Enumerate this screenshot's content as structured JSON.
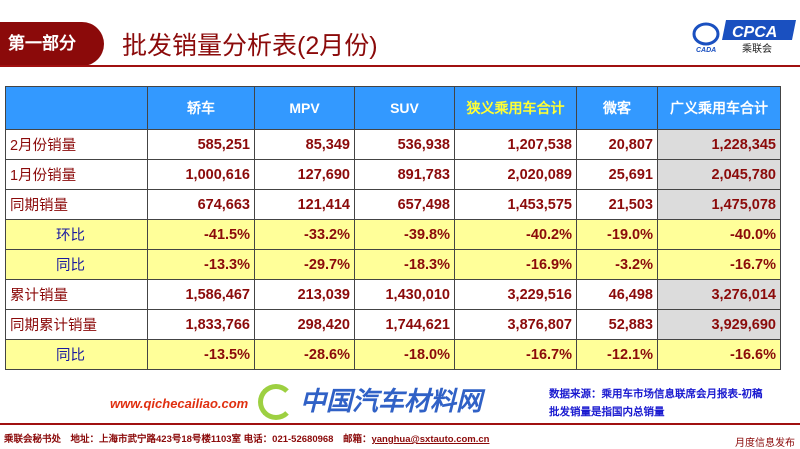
{
  "header": {
    "section": "第一部分",
    "title": "批发销量分析表(2月份)",
    "logo_text": "CPCA",
    "logo_sub": "乘联会",
    "logo_mark": "CADA"
  },
  "table": {
    "columns": [
      "",
      "轿车",
      "MPV",
      "SUV",
      "狭义乘用车合计",
      "微客",
      "广义乘用车合计"
    ],
    "rows": [
      {
        "label": "2月份销量",
        "values": [
          "585,251",
          "85,349",
          "536,938",
          "1,207,538",
          "20,807",
          "1,228,345"
        ],
        "type": "data"
      },
      {
        "label": "1月份销量",
        "values": [
          "1,000,616",
          "127,690",
          "891,783",
          "2,020,089",
          "25,691",
          "2,045,780"
        ],
        "type": "data"
      },
      {
        "label": "同期销量",
        "values": [
          "674,663",
          "121,414",
          "657,498",
          "1,453,575",
          "21,503",
          "1,475,078"
        ],
        "type": "data"
      },
      {
        "label": "环比",
        "values": [
          "-41.5%",
          "-33.2%",
          "-39.8%",
          "-40.2%",
          "-19.0%",
          "-40.0%"
        ],
        "type": "ratio"
      },
      {
        "label": "同比",
        "values": [
          "-13.3%",
          "-29.7%",
          "-18.3%",
          "-16.9%",
          "-3.2%",
          "-16.7%"
        ],
        "type": "ratio"
      },
      {
        "label": "累计销量",
        "values": [
          "1,586,467",
          "213,039",
          "1,430,010",
          "3,229,516",
          "46,498",
          "3,276,014"
        ],
        "type": "data"
      },
      {
        "label": "同期累计销量",
        "values": [
          "1,833,766",
          "298,420",
          "1,744,621",
          "3,876,807",
          "52,883",
          "3,929,690"
        ],
        "type": "data"
      },
      {
        "label": "同比",
        "values": [
          "-13.5%",
          "-28.6%",
          "-18.0%",
          "-16.7%",
          "-12.1%",
          "-16.6%"
        ],
        "type": "ratio"
      }
    ]
  },
  "notes": [
    "数据来源：乘用车市场信息联席会月报表-初稿",
    "批发销量是指国内总销量"
  ],
  "footer": {
    "text": "乘联会秘书处　地址：上海市武宁路423号18号楼1103室  电话：021-52680968　邮箱：",
    "email": "yanghua@sxtauto.com.cn",
    "right": "月度信息发布"
  },
  "watermark": {
    "title": "中国汽车材料网",
    "url": "www.qichecailiao.com"
  },
  "colors": {
    "header_bg": "#3399ff",
    "accent": "#8b0a0a",
    "ratio_bg": "#ffff99",
    "highlight_text": "#ffff33"
  }
}
